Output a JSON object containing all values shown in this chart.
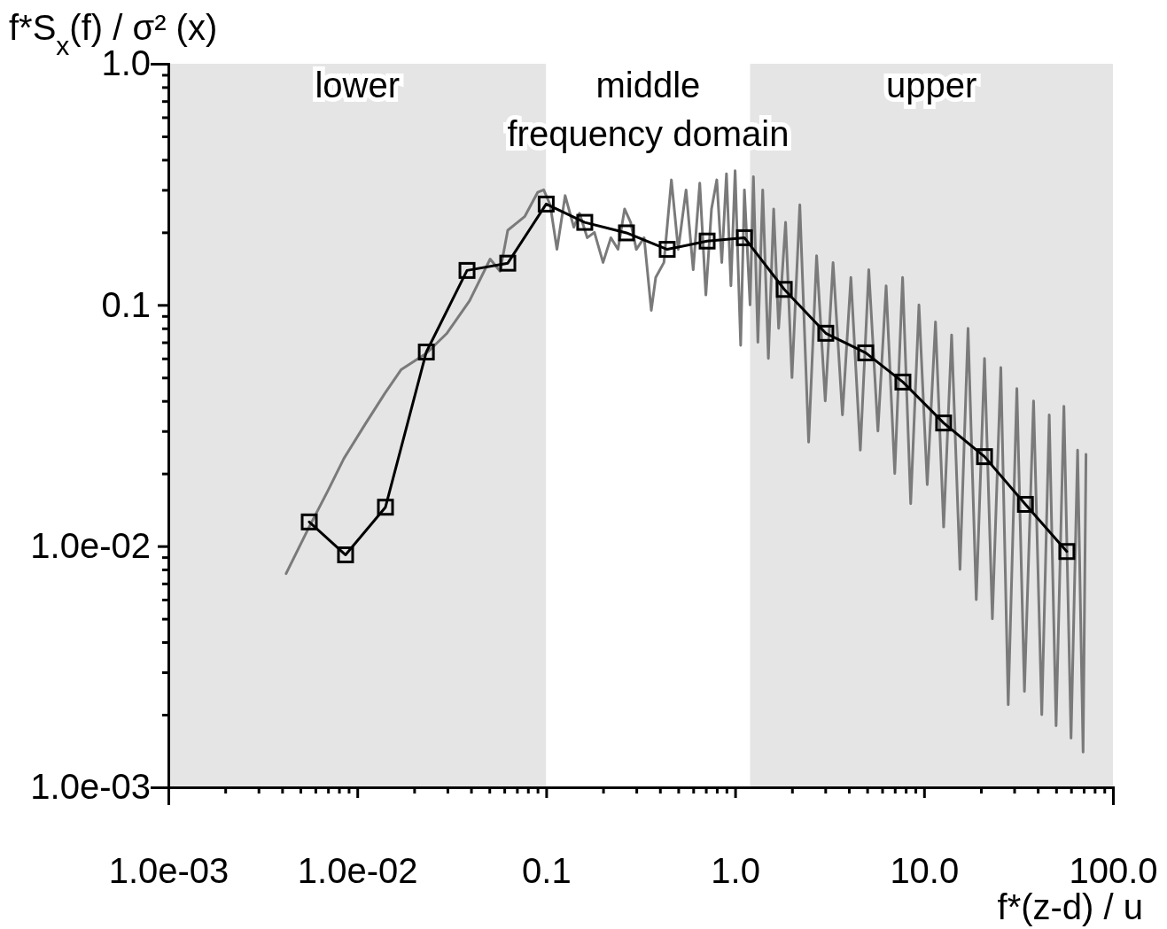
{
  "chart_data": {
    "type": "line",
    "xlabel": "f*(z-d) / u",
    "ylabel": "f*S$_{x}$(f) / σ² (x)",
    "log": "xy",
    "grid": false,
    "legend": false,
    "line_style": "solid",
    "xlim": [
      0.001,
      100
    ],
    "ylim": [
      0.001,
      1.0
    ],
    "xticks": [
      {
        "value": 0.001,
        "label": "1.0e-03"
      },
      {
        "value": 0.002,
        "label": null
      },
      {
        "value": 0.003,
        "label": null
      },
      {
        "value": 0.004,
        "label": null
      },
      {
        "value": 0.005,
        "label": null
      },
      {
        "value": 0.006,
        "label": null
      },
      {
        "value": 0.007,
        "label": null
      },
      {
        "value": 0.008,
        "label": null
      },
      {
        "value": 0.009,
        "label": null
      },
      {
        "value": 0.01,
        "label": "1.0e-02"
      },
      {
        "value": 0.02,
        "label": null
      },
      {
        "value": 0.03,
        "label": null
      },
      {
        "value": 0.04,
        "label": null
      },
      {
        "value": 0.05,
        "label": null
      },
      {
        "value": 0.06,
        "label": null
      },
      {
        "value": 0.07,
        "label": null
      },
      {
        "value": 0.08,
        "label": null
      },
      {
        "value": 0.09,
        "label": null
      },
      0.1,
      {
        "value": 0.2,
        "label": null
      },
      {
        "value": 0.3,
        "label": null
      },
      {
        "value": 0.4,
        "label": null
      },
      {
        "value": 0.5,
        "label": null
      },
      {
        "value": 0.6,
        "label": null
      },
      {
        "value": 0.7,
        "label": null
      },
      {
        "value": 0.8,
        "label": null
      },
      {
        "value": 0.9,
        "label": null
      },
      {
        "value": 1,
        "label": "1.0"
      },
      {
        "value": 2,
        "label": null
      },
      {
        "value": 3,
        "label": null
      },
      {
        "value": 4,
        "label": null
      },
      {
        "value": 5,
        "label": null
      },
      {
        "value": 6,
        "label": null
      },
      {
        "value": 7,
        "label": null
      },
      {
        "value": 8,
        "label": null
      },
      {
        "value": 9,
        "label": null
      },
      {
        "value": 10,
        "label": "10.0"
      },
      {
        "value": 20,
        "label": null
      },
      {
        "value": 30,
        "label": null
      },
      {
        "value": 40,
        "label": null
      },
      {
        "value": 50,
        "label": null
      },
      {
        "value": 60,
        "label": null
      },
      {
        "value": 70,
        "label": null
      },
      {
        "value": 80,
        "label": null
      },
      {
        "value": 90,
        "label": null
      },
      {
        "value": 100,
        "label": "100.0"
      }
    ],
    "yticks": [
      {
        "value": 0.001,
        "label": "1.0e-03"
      },
      {
        "value": 0.002,
        "label": null
      },
      {
        "value": 0.003,
        "label": null
      },
      {
        "value": 0.004,
        "label": null
      },
      {
        "value": 0.005,
        "label": null
      },
      {
        "value": 0.006,
        "label": null
      },
      {
        "value": 0.007,
        "label": null
      },
      {
        "value": 0.008,
        "label": null
      },
      {
        "value": 0.009,
        "label": null
      },
      {
        "value": 0.01,
        "label": "1.0e-02"
      },
      {
        "value": 0.02,
        "label": null
      },
      {
        "value": 0.03,
        "label": null
      },
      {
        "value": 0.04,
        "label": null
      },
      {
        "value": 0.05,
        "label": null
      },
      {
        "value": 0.06,
        "label": null
      },
      {
        "value": 0.07,
        "label": null
      },
      {
        "value": 0.08,
        "label": null
      },
      {
        "value": 0.09,
        "label": null
      },
      0.1,
      {
        "value": 0.2,
        "label": null
      },
      {
        "value": 0.3,
        "label": null
      },
      {
        "value": 0.4,
        "label": null
      },
      {
        "value": 0.5,
        "label": null
      },
      {
        "value": 0.6,
        "label": null
      },
      {
        "value": 0.7,
        "label": null
      },
      {
        "value": 0.8,
        "label": null
      },
      {
        "value": 0.9,
        "label": null
      },
      {
        "value": 1,
        "label": "1.0"
      }
    ],
    "bands": [
      {
        "axis": "x",
        "from": 0.001,
        "to": 0.1,
        "label": "lower",
        "color": "#e5e5e5"
      },
      {
        "axis": "x",
        "from": 0.1,
        "to": 1.2,
        "label": "middle",
        "color": "#ffffff"
      },
      {
        "axis": "x",
        "from": 1.2,
        "to": 100,
        "label": "upper",
        "color": "#e5e5e5"
      }
    ],
    "annotations": [
      "frequency domain"
    ],
    "series": [
      {
        "color": "#7a7a7a",
        "marker": "none",
        "x": [
          0.0042,
          0.0055,
          0.007,
          0.0085,
          0.011,
          0.014,
          0.0171,
          0.0232,
          0.0297,
          0.0393,
          0.0505,
          0.057,
          0.0626,
          0.0771,
          0.0901,
          0.097,
          0.105,
          0.114,
          0.126,
          0.14,
          0.15,
          0.165,
          0.18,
          0.2,
          0.22,
          0.24,
          0.26,
          0.28,
          0.3,
          0.33,
          0.36,
          0.38,
          0.42,
          0.46,
          0.5,
          0.55,
          0.6,
          0.65,
          0.7,
          0.75,
          0.8,
          0.85,
          0.9,
          0.95,
          1.0,
          1.07,
          1.12,
          1.2,
          1.25,
          1.32,
          1.4,
          1.5,
          1.6,
          1.7,
          1.85,
          2.0,
          2.2,
          2.45,
          2.7,
          3.0,
          3.3,
          3.7,
          4.1,
          4.6,
          5.1,
          5.7,
          6.3,
          7.0,
          7.7,
          8.5,
          9.4,
          10.4,
          11.5,
          12.7,
          14,
          15.5,
          17.1,
          18.9,
          20.9,
          23,
          25.5,
          27.9,
          31,
          34,
          38,
          42,
          46,
          50,
          55,
          60,
          65,
          69.5,
          72
        ],
        "values": [
          0.0077,
          0.0118,
          0.017,
          0.0231,
          0.032,
          0.043,
          0.054,
          0.063,
          0.076,
          0.104,
          0.155,
          0.138,
          0.204,
          0.233,
          0.293,
          0.3,
          0.26,
          0.17,
          0.284,
          0.21,
          0.24,
          0.19,
          0.2,
          0.15,
          0.19,
          0.17,
          0.25,
          0.22,
          0.17,
          0.19,
          0.095,
          0.13,
          0.15,
          0.33,
          0.17,
          0.3,
          0.14,
          0.32,
          0.11,
          0.25,
          0.33,
          0.15,
          0.35,
          0.12,
          0.36,
          0.068,
          0.3,
          0.1,
          0.34,
          0.07,
          0.3,
          0.06,
          0.25,
          0.08,
          0.22,
          0.05,
          0.26,
          0.027,
          0.16,
          0.04,
          0.15,
          0.035,
          0.13,
          0.025,
          0.14,
          0.03,
          0.12,
          0.02,
          0.13,
          0.015,
          0.1,
          0.018,
          0.085,
          0.012,
          0.075,
          0.008,
          0.08,
          0.006,
          0.06,
          0.005,
          0.055,
          0.0022,
          0.045,
          0.0025,
          0.04,
          0.002,
          0.035,
          0.0018,
          0.038,
          0.0016,
          0.025,
          0.0014,
          0.024
        ]
      },
      {
        "color": "#000000",
        "marker": "square",
        "x": [
          0.00557,
          0.00867,
          0.0141,
          0.0232,
          0.0381,
          0.0626,
          0.1,
          0.16,
          0.266,
          0.437,
          0.711,
          1.12,
          1.82,
          3.02,
          4.91,
          7.73,
          12.7,
          20.9,
          34.4,
          57
        ],
        "values": [
          0.0126,
          0.0092,
          0.0145,
          0.0638,
          0.139,
          0.149,
          0.262,
          0.22,
          0.199,
          0.17,
          0.184,
          0.19,
          0.116,
          0.0763,
          0.0633,
          0.0479,
          0.0324,
          0.0235,
          0.0149,
          0.0095
        ]
      }
    ]
  }
}
